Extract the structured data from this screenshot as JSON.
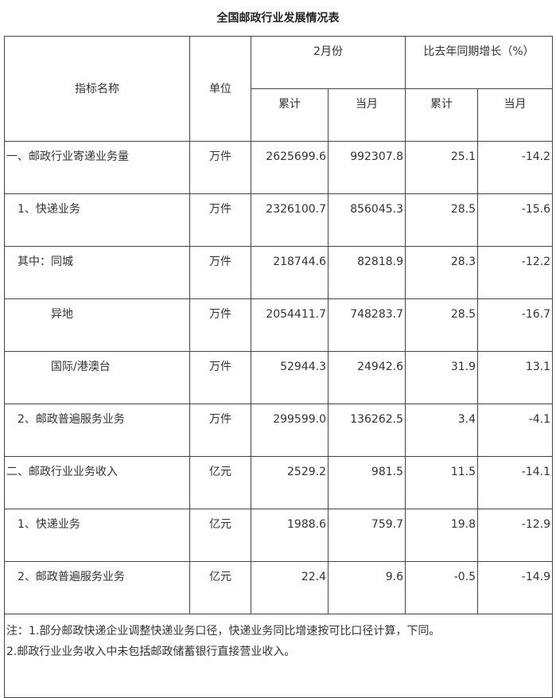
{
  "title": "全国邮政行业发展情况表",
  "headers": {
    "name": "指标名称",
    "unit": "单位",
    "month_group": "2月份",
    "growth_group": "比去年同期增长（%）",
    "cumulative": "累计",
    "current": "当月"
  },
  "rows": [
    {
      "name": "一、邮政行业寄递业务量",
      "unit": "万件",
      "cum": "2625699.6",
      "cur": "992307.8",
      "g_cum": "25.1",
      "g_cur": "-14.2",
      "indent": 0
    },
    {
      "name": "1、快递业务",
      "unit": "万件",
      "cum": "2326100.7",
      "cur": "856045.3",
      "g_cum": "28.5",
      "g_cur": "-15.6",
      "indent": 1
    },
    {
      "name": "其中：同城",
      "unit": "万件",
      "cum": "218744.6",
      "cur": "82818.9",
      "g_cum": "28.3",
      "g_cur": "-12.2",
      "indent": 1
    },
    {
      "name": "异地",
      "unit": "万件",
      "cum": "2054411.7",
      "cur": "748283.7",
      "g_cum": "28.5",
      "g_cur": "-16.7",
      "indent": 2
    },
    {
      "name": "国际/港澳台",
      "unit": "万件",
      "cum": "52944.3",
      "cur": "24942.6",
      "g_cum": "31.9",
      "g_cur": "13.1",
      "indent": 2
    },
    {
      "name": "2、邮政普遍服务业务",
      "unit": "万件",
      "cum": "299599.0",
      "cur": "136262.5",
      "g_cum": "3.4",
      "g_cur": "-4.1",
      "indent": 1
    },
    {
      "name": "二、邮政行业业务收入",
      "unit": "亿元",
      "cum": "2529.2",
      "cur": "981.5",
      "g_cum": "11.5",
      "g_cur": "-14.1",
      "indent": 0
    },
    {
      "name": "1、快递业务",
      "unit": "亿元",
      "cum": "1988.6",
      "cur": "759.7",
      "g_cum": "19.8",
      "g_cur": "-12.9",
      "indent": 1
    },
    {
      "name": "2、邮政普遍服务业务",
      "unit": "亿元",
      "cum": "22.4",
      "cur": "9.6",
      "g_cum": "-0.5",
      "g_cur": "-14.9",
      "indent": 1
    }
  ],
  "notes": [
    "注：1.部分邮政快递企业调整快递业务口径，快递业务同比增速按可比口径计算，下同。",
    "2.邮政行业业务收入中未包括邮政储蓄银行直接营业收入。"
  ]
}
